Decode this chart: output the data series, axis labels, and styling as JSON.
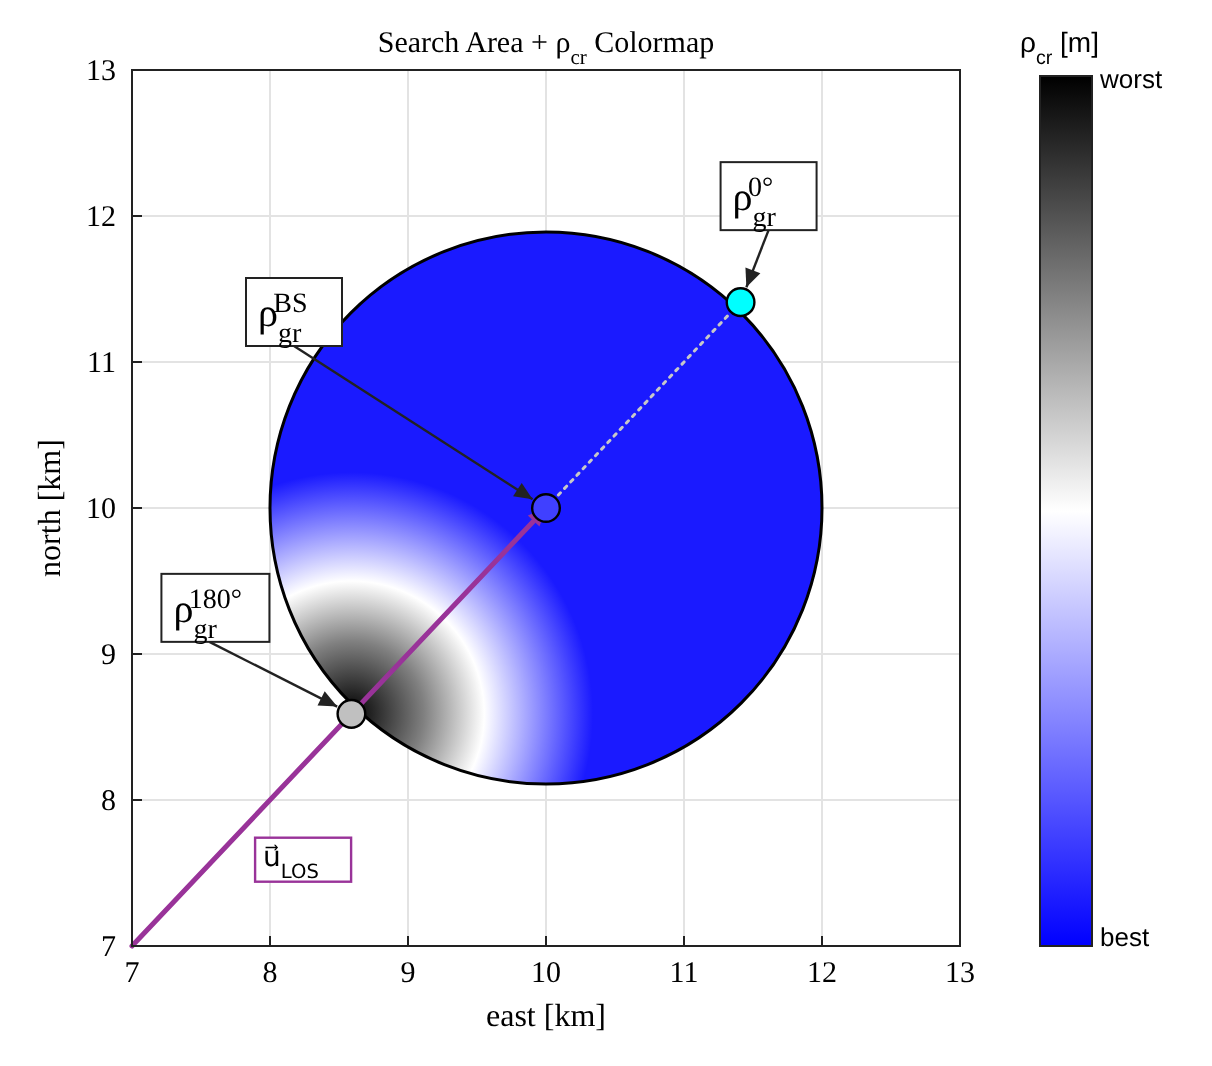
{
  "chart_data": {
    "type": "scatter",
    "title": "Search Area + ρ$_{cr}$ Colormap",
    "xlabel": "east [km]",
    "ylabel": "north [km]",
    "clabel": "ρ$_{cr}$ [m]",
    "xlim": [
      7,
      13
    ],
    "ylim": [
      7,
      13
    ],
    "xticks": [
      7,
      8,
      9,
      10,
      11,
      12,
      13
    ],
    "yticks": [
      7,
      8,
      9,
      10,
      11,
      12,
      13
    ],
    "grid": true,
    "clim": [
      0,
      1
    ],
    "cticks": [
      {
        "value": 1,
        "label": "worst"
      },
      {
        "value": 0,
        "label": "best"
      }
    ],
    "series": [
      {
        "type": "line",
        "name": "u⃗$_{LOS}$",
        "color": "#993399",
        "x": [
          7,
          10
        ],
        "values": [
          7,
          10
        ],
        "line_style": "solid"
      },
      {
        "type": "line",
        "color": "#c8c8c8",
        "x": [
          10,
          11.41
        ],
        "values": [
          10,
          11.41
        ],
        "line_style": "dotted"
      },
      {
        "x": [
          11.41,
          8.59,
          10
        ],
        "values": [
          11.41,
          8.59,
          10
        ],
        "colors": [
          "#00ffff",
          "#c0c0c0",
          "#4040ff"
        ],
        "marker": "circle"
      }
    ],
    "annotations": [
      {
        "text": "ρ$_{gr}$$^{0°}$",
        "x": 11.41,
        "y": 11.41
      },
      {
        "text": "ρ$_{gr}$$^{BS}$",
        "x": 10,
        "y": 10
      },
      {
        "text": "ρ$_{gr}$$^{180°}$",
        "x": 8.59,
        "y": 8.59
      }
    ]
  }
}
